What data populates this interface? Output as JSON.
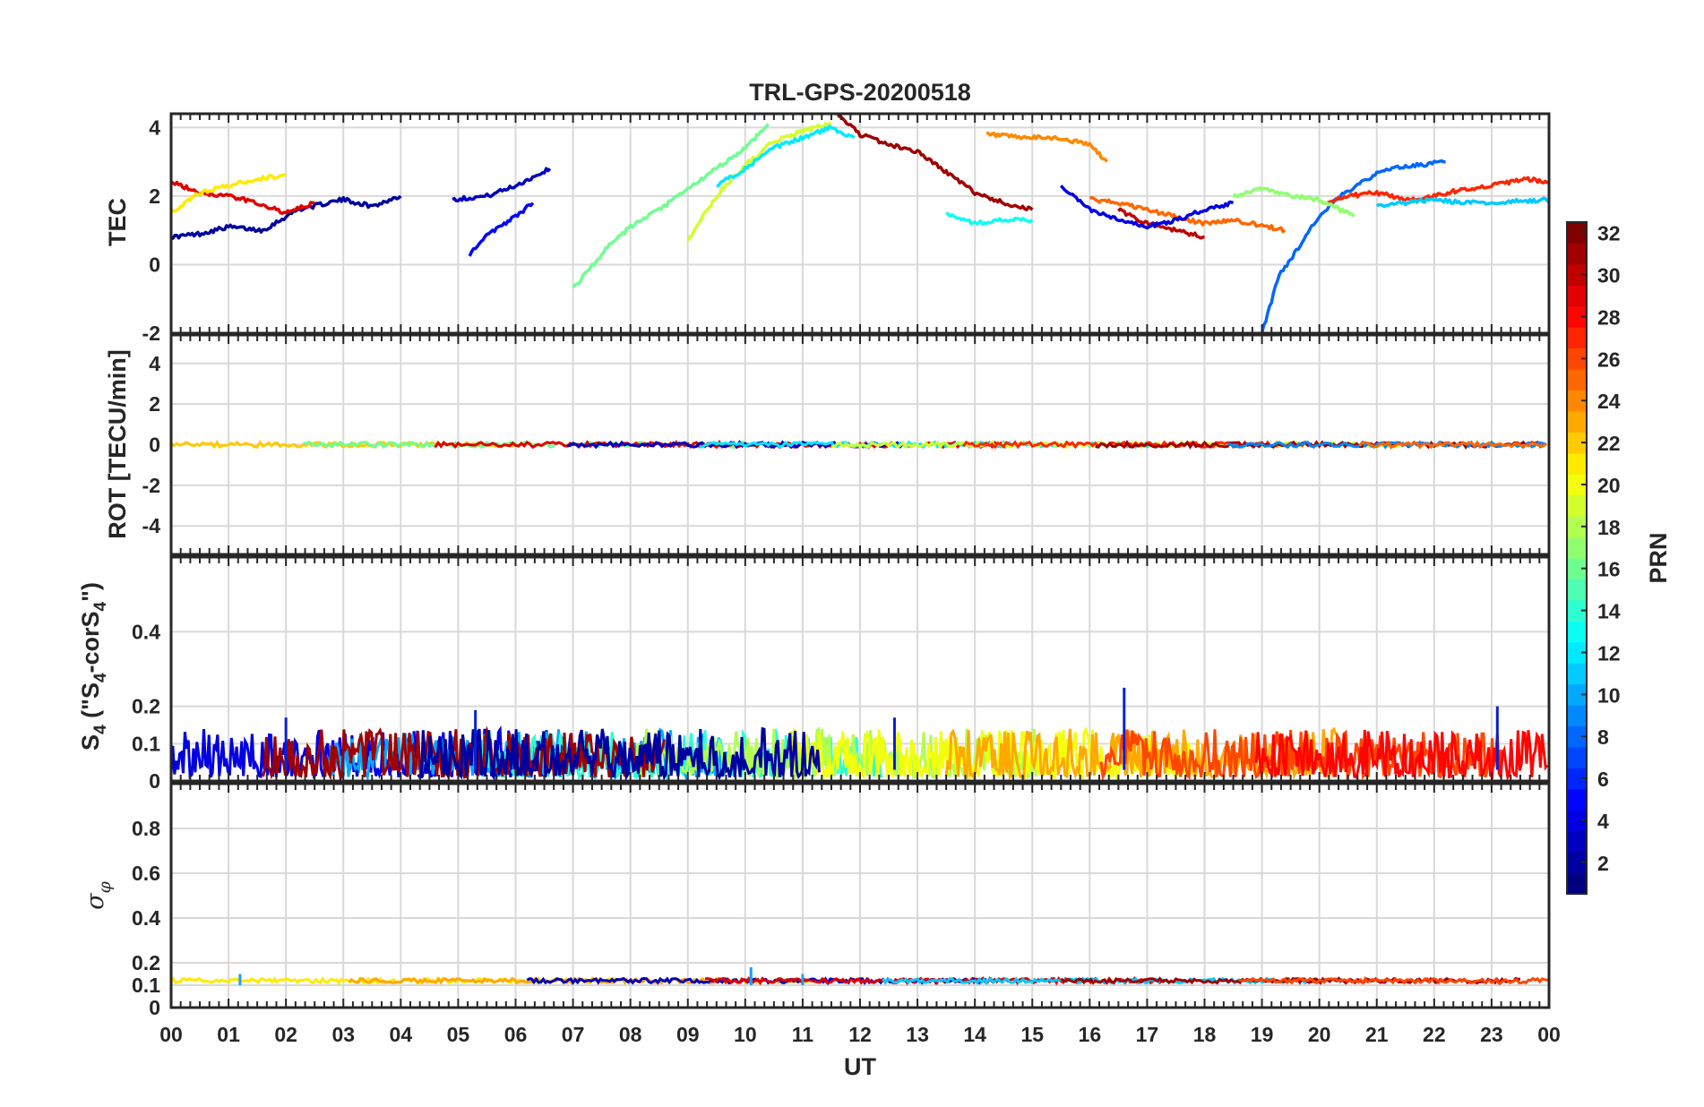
{
  "chart_data": {
    "type": "line",
    "title": "TRL-GPS-20200518",
    "x_axis": {
      "label": "UT",
      "range_hours": [
        0,
        24
      ],
      "tick_labels": [
        "00",
        "01",
        "02",
        "03",
        "04",
        "05",
        "06",
        "07",
        "08",
        "09",
        "10",
        "11",
        "12",
        "13",
        "14",
        "15",
        "16",
        "17",
        "18",
        "19",
        "20",
        "21",
        "22",
        "23",
        "00"
      ]
    },
    "colorbar": {
      "label": "PRN",
      "range": [
        1,
        32
      ],
      "tick_labels": [
        "2",
        "4",
        "6",
        "8",
        "10",
        "12",
        "14",
        "16",
        "18",
        "20",
        "22",
        "24",
        "26",
        "28",
        "30",
        "32"
      ],
      "colormap": "jet"
    },
    "grid": true,
    "panels": [
      {
        "id": "tec",
        "ylabel": "TEC",
        "ylim": [
          -2,
          4.4
        ],
        "tick_labels": [
          "-2",
          "0",
          "2",
          "4"
        ],
        "series": [
          {
            "prn": 2,
            "points": [
              [
                0,
                0.8
              ],
              [
                0.5,
                0.9
              ],
              [
                1,
                1.1
              ],
              [
                1.6,
                1.0
              ],
              [
                2.2,
                1.6
              ],
              [
                3,
                1.9
              ],
              [
                3.5,
                1.7
              ],
              [
                4,
                2.0
              ]
            ]
          },
          {
            "prn": 3,
            "points": [
              [
                4.9,
                1.9
              ],
              [
                5.5,
                2.0
              ],
              [
                6,
                2.3
              ],
              [
                6.6,
                2.8
              ]
            ]
          },
          {
            "prn": 5,
            "points": [
              [
                5.2,
                0.3
              ],
              [
                5.4,
                0.7
              ],
              [
                5.7,
                1.1
              ],
              [
                6,
                1.4
              ],
              [
                6.3,
                1.8
              ]
            ]
          },
          {
            "prn": 8,
            "points": [
              [
                19,
                -2
              ],
              [
                19.3,
                -0.3
              ],
              [
                19.6,
                0.4
              ],
              [
                19.9,
                1.2
              ],
              [
                20.3,
                1.9
              ],
              [
                20.7,
                2.4
              ],
              [
                21.2,
                2.8
              ],
              [
                22.2,
                3.0
              ]
            ]
          },
          {
            "prn": 24,
            "points": [
              [
                14.2,
                3.8
              ],
              [
                14.8,
                3.7
              ],
              [
                15.4,
                3.7
              ],
              [
                16,
                3.5
              ],
              [
                16.3,
                3.0
              ]
            ]
          },
          {
            "prn": 31,
            "points": [
              [
                11.6,
                4.4
              ],
              [
                12,
                3.8
              ],
              [
                12.5,
                3.5
              ],
              [
                13,
                3.3
              ],
              [
                13.5,
                2.7
              ],
              [
                14,
                2.1
              ],
              [
                14.5,
                1.8
              ],
              [
                15,
                1.6
              ]
            ]
          },
          {
            "prn": 29,
            "points": [
              [
                0,
                2.4
              ],
              [
                0.5,
                2.1
              ],
              [
                1,
                2.0
              ],
              [
                1.5,
                1.8
              ],
              [
                2,
                1.5
              ],
              [
                2.5,
                1.8
              ]
            ]
          },
          {
            "prn": 21,
            "points": [
              [
                0,
                1.5
              ],
              [
                0.5,
                2.1
              ],
              [
                1,
                2.3
              ],
              [
                1.5,
                2.5
              ],
              [
                2,
                2.6
              ]
            ]
          },
          {
            "prn": 16,
            "points": [
              [
                7,
                -0.7
              ],
              [
                7.3,
                -0.1
              ],
              [
                7.6,
                0.5
              ],
              [
                8,
                1.1
              ],
              [
                8.5,
                1.6
              ],
              [
                9,
                2.2
              ],
              [
                9.5,
                2.8
              ],
              [
                10,
                3.4
              ],
              [
                10.4,
                4.1
              ]
            ]
          },
          {
            "prn": 19,
            "points": [
              [
                9,
                0.7
              ],
              [
                9.3,
                1.5
              ],
              [
                9.6,
                2.2
              ],
              [
                10,
                2.9
              ],
              [
                10.5,
                3.6
              ],
              [
                11,
                3.9
              ],
              [
                11.5,
                4.1
              ]
            ]
          },
          {
            "prn": 12,
            "points": [
              [
                9.5,
                2.3
              ],
              [
                10,
                2.8
              ],
              [
                10.5,
                3.4
              ],
              [
                11,
                3.7
              ],
              [
                11.5,
                4.0
              ],
              [
                11.9,
                3.7
              ]
            ]
          },
          {
            "prn": 13,
            "points": [
              [
                13.5,
                1.5
              ],
              [
                14,
                1.2
              ],
              [
                14.5,
                1.3
              ],
              [
                15,
                1.3
              ]
            ]
          },
          {
            "prn": 25,
            "points": [
              [
                16,
                1.9
              ],
              [
                16.5,
                1.8
              ],
              [
                17,
                1.6
              ],
              [
                17.5,
                1.4
              ],
              [
                18,
                1.2
              ],
              [
                18.5,
                1.3
              ],
              [
                19.4,
                1.0
              ]
            ]
          },
          {
            "prn": 27,
            "points": [
              [
                20,
                1.8
              ],
              [
                20.5,
                2.0
              ],
              [
                21,
                2.1
              ],
              [
                21.5,
                1.9
              ],
              [
                22,
                2.0
              ],
              [
                22.5,
                2.2
              ],
              [
                23,
                2.3
              ],
              [
                23.6,
                2.5
              ],
              [
                24,
                2.4
              ]
            ]
          },
          {
            "prn": 11,
            "points": [
              [
                21,
                1.7
              ],
              [
                21.5,
                1.8
              ],
              [
                22,
                1.9
              ],
              [
                22.5,
                1.8
              ],
              [
                23,
                1.8
              ],
              [
                24,
                1.9
              ]
            ]
          },
          {
            "prn": 30,
            "points": [
              [
                16.5,
                1.6
              ],
              [
                17,
                1.2
              ],
              [
                17.5,
                1.0
              ],
              [
                18,
                0.8
              ]
            ]
          },
          {
            "prn": 17,
            "points": [
              [
                18.5,
                2.0
              ],
              [
                19,
                2.2
              ],
              [
                19.5,
                2.0
              ],
              [
                20,
                1.9
              ],
              [
                20.6,
                1.4
              ]
            ]
          },
          {
            "prn": 4,
            "points": [
              [
                15.5,
                2.3
              ],
              [
                16,
                1.6
              ],
              [
                16.5,
                1.3
              ],
              [
                17,
                1.1
              ],
              [
                17.5,
                1.3
              ],
              [
                18,
                1.6
              ],
              [
                18.5,
                1.8
              ]
            ]
          }
        ]
      },
      {
        "id": "rot",
        "ylabel": "ROT [TECU/min]",
        "ylim": [
          -5.4,
          5.4
        ],
        "tick_labels": [
          "-4",
          "-2",
          "0",
          "2",
          "4"
        ],
        "description_value": 0
      },
      {
        "id": "s4",
        "ylabel": "S4 (\"S4-corS4\")",
        "ylabel_base": "S",
        "ylabel_sub": "4",
        "ylabel_rest1": " (\"S",
        "ylabel_sub2": "4",
        "ylabel_rest2": "-corS",
        "ylabel_sub3": "4",
        "ylabel_rest3": "\")",
        "ylim": [
          0,
          0.6
        ],
        "tick_labels": [
          "0",
          "0.1",
          "0.2",
          "0.4"
        ],
        "typical_range": [
          0,
          0.15
        ],
        "spikes": [
          [
            5.3,
            0.19
          ],
          [
            16.6,
            0.25
          ],
          [
            23.1,
            0.2
          ],
          [
            2.0,
            0.17
          ],
          [
            12.6,
            0.17
          ]
        ]
      },
      {
        "id": "sigma",
        "ylabel": "σ φ",
        "ylabel_main": "σ",
        "ylabel_sub": "φ",
        "ylim": [
          0,
          1
        ],
        "tick_labels": [
          "0",
          "0.1",
          "0.2",
          "0.4",
          "0.6",
          "0.8"
        ],
        "baseline": 0.1,
        "spikes": [
          [
            10.1,
            0.18
          ],
          [
            11.0,
            0.15
          ],
          [
            1.2,
            0.15
          ]
        ]
      }
    ]
  }
}
